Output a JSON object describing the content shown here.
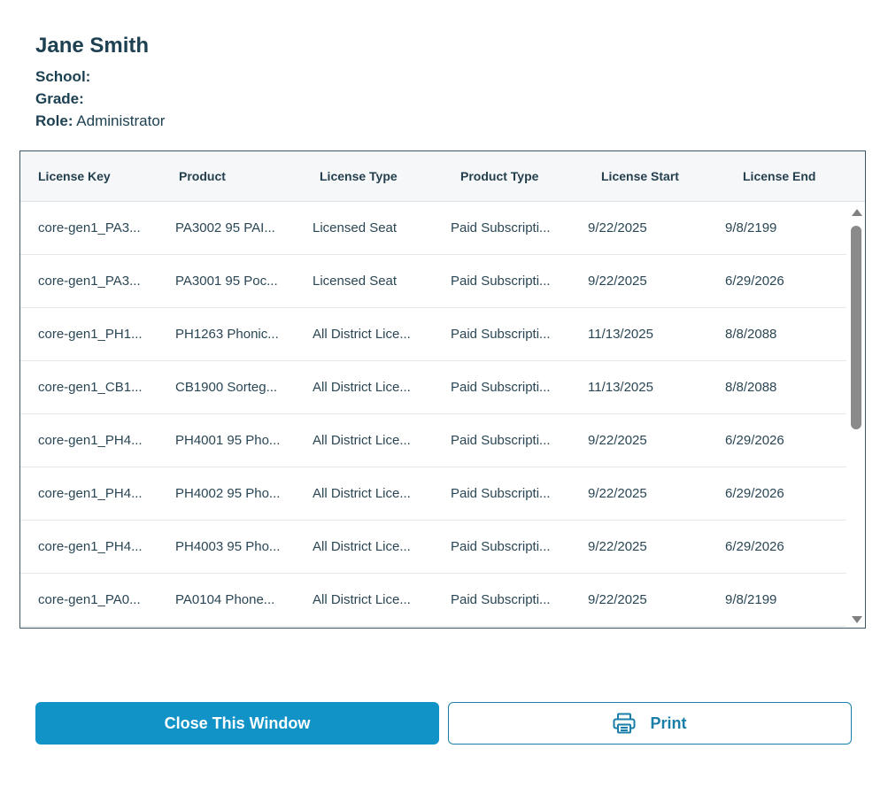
{
  "user": {
    "name": "Jane Smith",
    "school_label": "School:",
    "school_value": "",
    "grade_label": "Grade:",
    "grade_value": "",
    "role_label": "Role:",
    "role_value": "Administrator"
  },
  "table": {
    "columns": [
      "License Key",
      "Product",
      "License Type",
      "Product Type",
      "License Start",
      "License End"
    ],
    "rows": [
      [
        "core-gen1_PA3...",
        "PA3002 95 PAI...",
        "Licensed Seat",
        "Paid Subscripti...",
        "9/22/2025",
        "9/8/2199"
      ],
      [
        "core-gen1_PA3...",
        "PA3001 95 Poc...",
        "Licensed Seat",
        "Paid Subscripti...",
        "9/22/2025",
        "6/29/2026"
      ],
      [
        "core-gen1_PH1...",
        "PH1263 Phonic...",
        "All District Lice...",
        "Paid Subscripti...",
        "11/13/2025",
        "8/8/2088"
      ],
      [
        "core-gen1_CB1...",
        "CB1900 Sorteg...",
        "All District Lice...",
        "Paid Subscripti...",
        "11/13/2025",
        "8/8/2088"
      ],
      [
        "core-gen1_PH4...",
        "PH4001 95 Pho...",
        "All District Lice...",
        "Paid Subscripti...",
        "9/22/2025",
        "6/29/2026"
      ],
      [
        "core-gen1_PH4...",
        "PH4002 95 Pho...",
        "All District Lice...",
        "Paid Subscripti...",
        "9/22/2025",
        "6/29/2026"
      ],
      [
        "core-gen1_PH4...",
        "PH4003 95 Pho...",
        "All District Lice...",
        "Paid Subscripti...",
        "9/22/2025",
        "6/29/2026"
      ],
      [
        "core-gen1_PA0...",
        "PA0104 Phone...",
        "All District Lice...",
        "Paid Subscripti...",
        "9/22/2025",
        "9/8/2199"
      ]
    ]
  },
  "buttons": {
    "close_label": "Close This Window",
    "print_label": "Print",
    "print_icon": "printer-icon"
  },
  "colors": {
    "primary": "#1193c8",
    "print_accent": "#1a7fa8",
    "text": "#1d4152"
  }
}
